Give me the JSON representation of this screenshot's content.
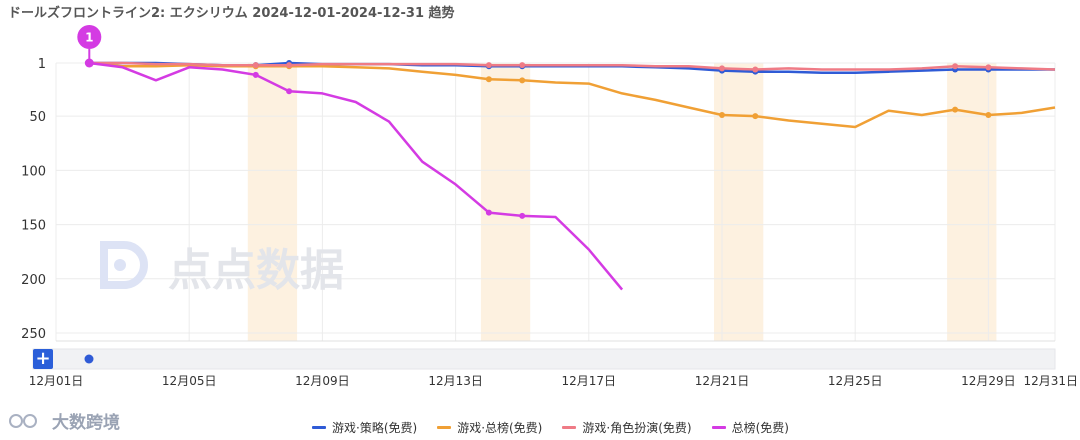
{
  "title": "ドールズフロントライン2: エクシリウム 2024-12-01-2024-12-31 趋势",
  "watermark": "点点数据",
  "footer_brand": "大数跨境",
  "zoom_button_label": "+",
  "colors": {
    "strategy": "#2f5bd6",
    "overall": "#f0a035",
    "rpg": "#ef7b86",
    "grossing": "#d43be3",
    "highlight": "#fdf1e0",
    "grid": "#ececec",
    "axis_text": "#333333"
  },
  "chart_data": {
    "type": "line",
    "title": "ドールズフロントライン2: エクシリウム 2024-12-01-2024-12-31 趋势",
    "x_ticks": [
      "12月01日",
      "12月05日",
      "12月09日",
      "12月13日",
      "12月17日",
      "12月21日",
      "12月25日",
      "12月29日",
      "12月31日"
    ],
    "x_range": [
      "2024-12-01",
      "2024-12-31"
    ],
    "y_ticks": [
      1,
      50,
      100,
      150,
      200,
      250
    ],
    "ylim": [
      1,
      250
    ],
    "y_inverted": true,
    "highlight_ranges": [
      [
        "2024-12-07",
        "2024-12-08"
      ],
      [
        "2024-12-14",
        "2024-12-15"
      ],
      [
        "2024-12-21",
        "2024-12-22"
      ],
      [
        "2024-12-28",
        "2024-12-29"
      ]
    ],
    "annotation": {
      "label": "1",
      "date": "2024-12-02",
      "value": 1
    },
    "legend_position": "bottom",
    "series": [
      {
        "name": "游戏·策略(免费)",
        "color_key": "strategy",
        "points": [
          [
            "2024-12-02",
            1
          ],
          [
            "2024-12-03",
            1
          ],
          [
            "2024-12-04",
            1
          ],
          [
            "2024-12-05",
            2
          ],
          [
            "2024-12-06",
            3
          ],
          [
            "2024-12-07",
            3
          ],
          [
            "2024-12-08",
            1
          ],
          [
            "2024-12-09",
            2
          ],
          [
            "2024-12-10",
            2
          ],
          [
            "2024-12-11",
            2
          ],
          [
            "2024-12-12",
            3
          ],
          [
            "2024-12-13",
            3
          ],
          [
            "2024-12-14",
            4
          ],
          [
            "2024-12-15",
            4
          ],
          [
            "2024-12-16",
            4
          ],
          [
            "2024-12-17",
            4
          ],
          [
            "2024-12-18",
            4
          ],
          [
            "2024-12-19",
            5
          ],
          [
            "2024-12-20",
            6
          ],
          [
            "2024-12-21",
            8
          ],
          [
            "2024-12-22",
            9
          ],
          [
            "2024-12-23",
            9
          ],
          [
            "2024-12-24",
            10
          ],
          [
            "2024-12-25",
            10
          ],
          [
            "2024-12-26",
            9
          ],
          [
            "2024-12-27",
            8
          ],
          [
            "2024-12-28",
            7
          ],
          [
            "2024-12-29",
            7
          ],
          [
            "2024-12-30",
            7
          ],
          [
            "2024-12-31",
            7
          ]
        ]
      },
      {
        "name": "游戏·总榜(免费)",
        "color_key": "overall",
        "points": [
          [
            "2024-12-02",
            1
          ],
          [
            "2024-12-03",
            4
          ],
          [
            "2024-12-04",
            4
          ],
          [
            "2024-12-05",
            3
          ],
          [
            "2024-12-06",
            4
          ],
          [
            "2024-12-07",
            4
          ],
          [
            "2024-12-08",
            4
          ],
          [
            "2024-12-09",
            4
          ],
          [
            "2024-12-10",
            5
          ],
          [
            "2024-12-11",
            6
          ],
          [
            "2024-12-12",
            9
          ],
          [
            "2024-12-13",
            12
          ],
          [
            "2024-12-14",
            16
          ],
          [
            "2024-12-15",
            17
          ],
          [
            "2024-12-16",
            19
          ],
          [
            "2024-12-17",
            20
          ],
          [
            "2024-12-18",
            29
          ],
          [
            "2024-12-19",
            35
          ],
          [
            "2024-12-20",
            42
          ],
          [
            "2024-12-21",
            49
          ],
          [
            "2024-12-22",
            50
          ],
          [
            "2024-12-23",
            54
          ],
          [
            "2024-12-24",
            57
          ],
          [
            "2024-12-25",
            60
          ],
          [
            "2024-12-26",
            45
          ],
          [
            "2024-12-27",
            49
          ],
          [
            "2024-12-28",
            44
          ],
          [
            "2024-12-29",
            49
          ],
          [
            "2024-12-30",
            47
          ],
          [
            "2024-12-31",
            42
          ]
        ]
      },
      {
        "name": "游戏·角色扮演(免费)",
        "color_key": "rpg",
        "points": [
          [
            "2024-12-02",
            1
          ],
          [
            "2024-12-03",
            1
          ],
          [
            "2024-12-04",
            2
          ],
          [
            "2024-12-05",
            2
          ],
          [
            "2024-12-06",
            3
          ],
          [
            "2024-12-07",
            3
          ],
          [
            "2024-12-08",
            3
          ],
          [
            "2024-12-09",
            2
          ],
          [
            "2024-12-10",
            2
          ],
          [
            "2024-12-11",
            2
          ],
          [
            "2024-12-12",
            2
          ],
          [
            "2024-12-13",
            2
          ],
          [
            "2024-12-14",
            3
          ],
          [
            "2024-12-15",
            3
          ],
          [
            "2024-12-16",
            3
          ],
          [
            "2024-12-17",
            3
          ],
          [
            "2024-12-18",
            3
          ],
          [
            "2024-12-19",
            4
          ],
          [
            "2024-12-20",
            4
          ],
          [
            "2024-12-21",
            6
          ],
          [
            "2024-12-22",
            7
          ],
          [
            "2024-12-23",
            6
          ],
          [
            "2024-12-24",
            7
          ],
          [
            "2024-12-25",
            7
          ],
          [
            "2024-12-26",
            7
          ],
          [
            "2024-12-27",
            6
          ],
          [
            "2024-12-28",
            4
          ],
          [
            "2024-12-29",
            5
          ],
          [
            "2024-12-30",
            6
          ],
          [
            "2024-12-31",
            7
          ]
        ]
      },
      {
        "name": "总榜(免费)",
        "color_key": "grossing",
        "points": [
          [
            "2024-12-02",
            1
          ],
          [
            "2024-12-03",
            5
          ],
          [
            "2024-12-04",
            17
          ],
          [
            "2024-12-05",
            5
          ],
          [
            "2024-12-06",
            7
          ],
          [
            "2024-12-07",
            12
          ],
          [
            "2024-12-08",
            27
          ],
          [
            "2024-12-09",
            29
          ],
          [
            "2024-12-10",
            37
          ],
          [
            "2024-12-11",
            55
          ],
          [
            "2024-12-12",
            92
          ],
          [
            "2024-12-13",
            113
          ],
          [
            "2024-12-14",
            139
          ],
          [
            "2024-12-15",
            142
          ],
          [
            "2024-12-16",
            143
          ],
          [
            "2024-12-17",
            173
          ],
          [
            "2024-12-18",
            210
          ]
        ]
      }
    ]
  }
}
